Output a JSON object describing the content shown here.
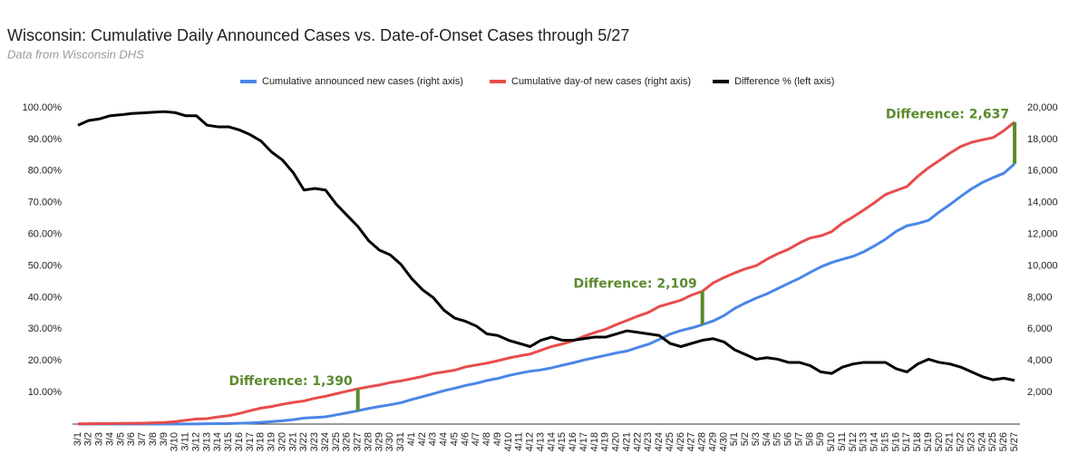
{
  "chart_data": {
    "type": "line",
    "title": "Wisconsin: Cumulative Daily Announced Cases vs. Date-of-Onset Cases through 5/27",
    "subtitle": "Data from Wisconsin DHS",
    "categories": [
      "3/1",
      "3/2",
      "3/3",
      "3/4",
      "3/5",
      "3/6",
      "3/7",
      "3/8",
      "3/9",
      "3/10",
      "3/11",
      "3/12",
      "3/13",
      "3/14",
      "3/15",
      "3/16",
      "3/17",
      "3/18",
      "3/19",
      "3/20",
      "3/21",
      "3/22",
      "3/23",
      "3/24",
      "3/25",
      "3/26",
      "3/27",
      "3/28",
      "3/29",
      "3/30",
      "3/31",
      "4/1",
      "4/2",
      "4/3",
      "4/4",
      "4/5",
      "4/6",
      "4/7",
      "4/8",
      "4/9",
      "4/10",
      "4/11",
      "4/12",
      "4/13",
      "4/14",
      "4/15",
      "4/16",
      "4/17",
      "4/18",
      "4/19",
      "4/20",
      "4/21",
      "4/22",
      "4/23",
      "4/24",
      "4/25",
      "4/26",
      "4/27",
      "4/28",
      "4/29",
      "4/30",
      "5/1",
      "5/2",
      "5/3",
      "5/4",
      "5/5",
      "5/6",
      "5/7",
      "5/8",
      "5/9",
      "5/10",
      "5/11",
      "5/12",
      "5/13",
      "5/14",
      "5/15",
      "5/16",
      "5/17",
      "5/18",
      "5/19",
      "5/20",
      "5/21",
      "5/22",
      "5/23",
      "5/24",
      "5/25",
      "5/26",
      "5/27"
    ],
    "series": [
      {
        "name": "Cumulative announced new cases (right axis)",
        "color": "#4a86e8",
        "axis": "y2",
        "values": [
          1,
          1,
          1,
          1,
          1,
          1,
          1,
          1,
          1,
          3,
          6,
          8,
          19,
          27,
          32,
          47,
          72,
          106,
          155,
          206,
          281,
          381,
          416,
          457,
          585,
          707,
          842,
          989,
          1112,
          1221,
          1351,
          1550,
          1730,
          1916,
          2112,
          2267,
          2440,
          2578,
          2756,
          2885,
          3068,
          3213,
          3341,
          3428,
          3555,
          3721,
          3875,
          4053,
          4199,
          4346,
          4499,
          4620,
          4845,
          5052,
          5356,
          5687,
          5911,
          6081,
          6289,
          6520,
          6854,
          7314,
          7660,
          7964,
          8236,
          8566,
          8901,
          9215,
          9590,
          9939,
          10219,
          10418,
          10611,
          10902,
          11275,
          11685,
          12187,
          12543,
          12687,
          12885,
          13413,
          13885,
          14396,
          14877,
          15277,
          15584,
          15863,
          16462
        ]
      },
      {
        "name": "Cumulative day-of new cases (right axis)",
        "color": "#e84c4c",
        "axis": "y2",
        "values": [
          18,
          22,
          28,
          35,
          40,
          50,
          60,
          80,
          100,
          150,
          240,
          320,
          345,
          450,
          530,
          670,
          850,
          1010,
          1110,
          1250,
          1370,
          1465,
          1630,
          1760,
          1920,
          2080,
          2232,
          2355,
          2470,
          2625,
          2730,
          2870,
          3010,
          3190,
          3300,
          3410,
          3615,
          3735,
          3855,
          4005,
          4175,
          4310,
          4425,
          4665,
          4905,
          5065,
          5270,
          5550,
          5790,
          5995,
          6290,
          6555,
          6825,
          7065,
          7440,
          7635,
          7830,
          8160,
          8398,
          8930,
          9260,
          9560,
          9820,
          10015,
          10425,
          10775,
          11055,
          11445,
          11765,
          11905,
          12165,
          12705,
          13100,
          13545,
          14005,
          14515,
          14770,
          15020,
          15665,
          16210,
          16660,
          17140,
          17555,
          17815,
          17975,
          18120,
          18555,
          19099
        ]
      },
      {
        "name": "Difference % (left axis)",
        "color": "#000000",
        "axis": "y",
        "values": [
          94.5,
          96,
          96.5,
          97.5,
          97.8,
          98.2,
          98.4,
          98.6,
          98.8,
          98.5,
          97.5,
          97.5,
          94.5,
          94,
          94,
          93,
          91.5,
          89.5,
          86,
          83.5,
          79.5,
          74,
          74.5,
          74,
          69.5,
          66,
          62.5,
          58,
          55,
          53.5,
          50.5,
          46,
          42.5,
          40,
          36,
          33.5,
          32.5,
          31,
          28.5,
          28,
          26.5,
          25.5,
          24.5,
          26.5,
          27.5,
          26.5,
          26.5,
          27,
          27.5,
          27.5,
          28.5,
          29.5,
          29,
          28.5,
          28,
          25.5,
          24.5,
          25.5,
          26.5,
          27,
          26,
          23.5,
          22,
          20.5,
          21,
          20.5,
          19.5,
          19.5,
          18.5,
          16.5,
          16,
          18,
          19,
          19.5,
          19.5,
          19.5,
          17.5,
          16.5,
          19,
          20.5,
          19.5,
          19,
          18,
          16.5,
          15,
          14,
          14.5,
          13.8
        ]
      }
    ],
    "ylim": [
      0,
      100
    ],
    "yticks": [
      {
        "value": 10,
        "label": "10.00%"
      },
      {
        "value": 20,
        "label": "20.00%"
      },
      {
        "value": 30,
        "label": "30.00%"
      },
      {
        "value": 40,
        "label": "40.00%"
      },
      {
        "value": 50,
        "label": "50.00%"
      },
      {
        "value": 60,
        "label": "60.00%"
      },
      {
        "value": 70,
        "label": "70.00%"
      },
      {
        "value": 80,
        "label": "80.00%"
      },
      {
        "value": 90,
        "label": "90.00%"
      },
      {
        "value": 100,
        "label": "100.00%"
      }
    ],
    "y2lim": [
      0,
      20000
    ],
    "y2ticks": [
      {
        "value": 2000,
        "label": "2,000"
      },
      {
        "value": 4000,
        "label": "4,000"
      },
      {
        "value": 6000,
        "label": "6,000"
      },
      {
        "value": 8000,
        "label": "8,000"
      },
      {
        "value": 10000,
        "label": "10,000"
      },
      {
        "value": 12000,
        "label": "12,000"
      },
      {
        "value": 14000,
        "label": "14,000"
      },
      {
        "value": 16000,
        "label": "16,000"
      },
      {
        "value": 18000,
        "label": "18,000"
      },
      {
        "value": 20000,
        "label": "20,000"
      }
    ],
    "annotations": [
      {
        "text": "Difference: 1,390",
        "x": "3/27"
      },
      {
        "text": "Difference: 2,109",
        "x": "4/28"
      },
      {
        "text": "Difference: 2,637",
        "x": "5/27"
      }
    ],
    "annotation_color": "#5b8a2d",
    "legend": "top",
    "grid": false
  }
}
